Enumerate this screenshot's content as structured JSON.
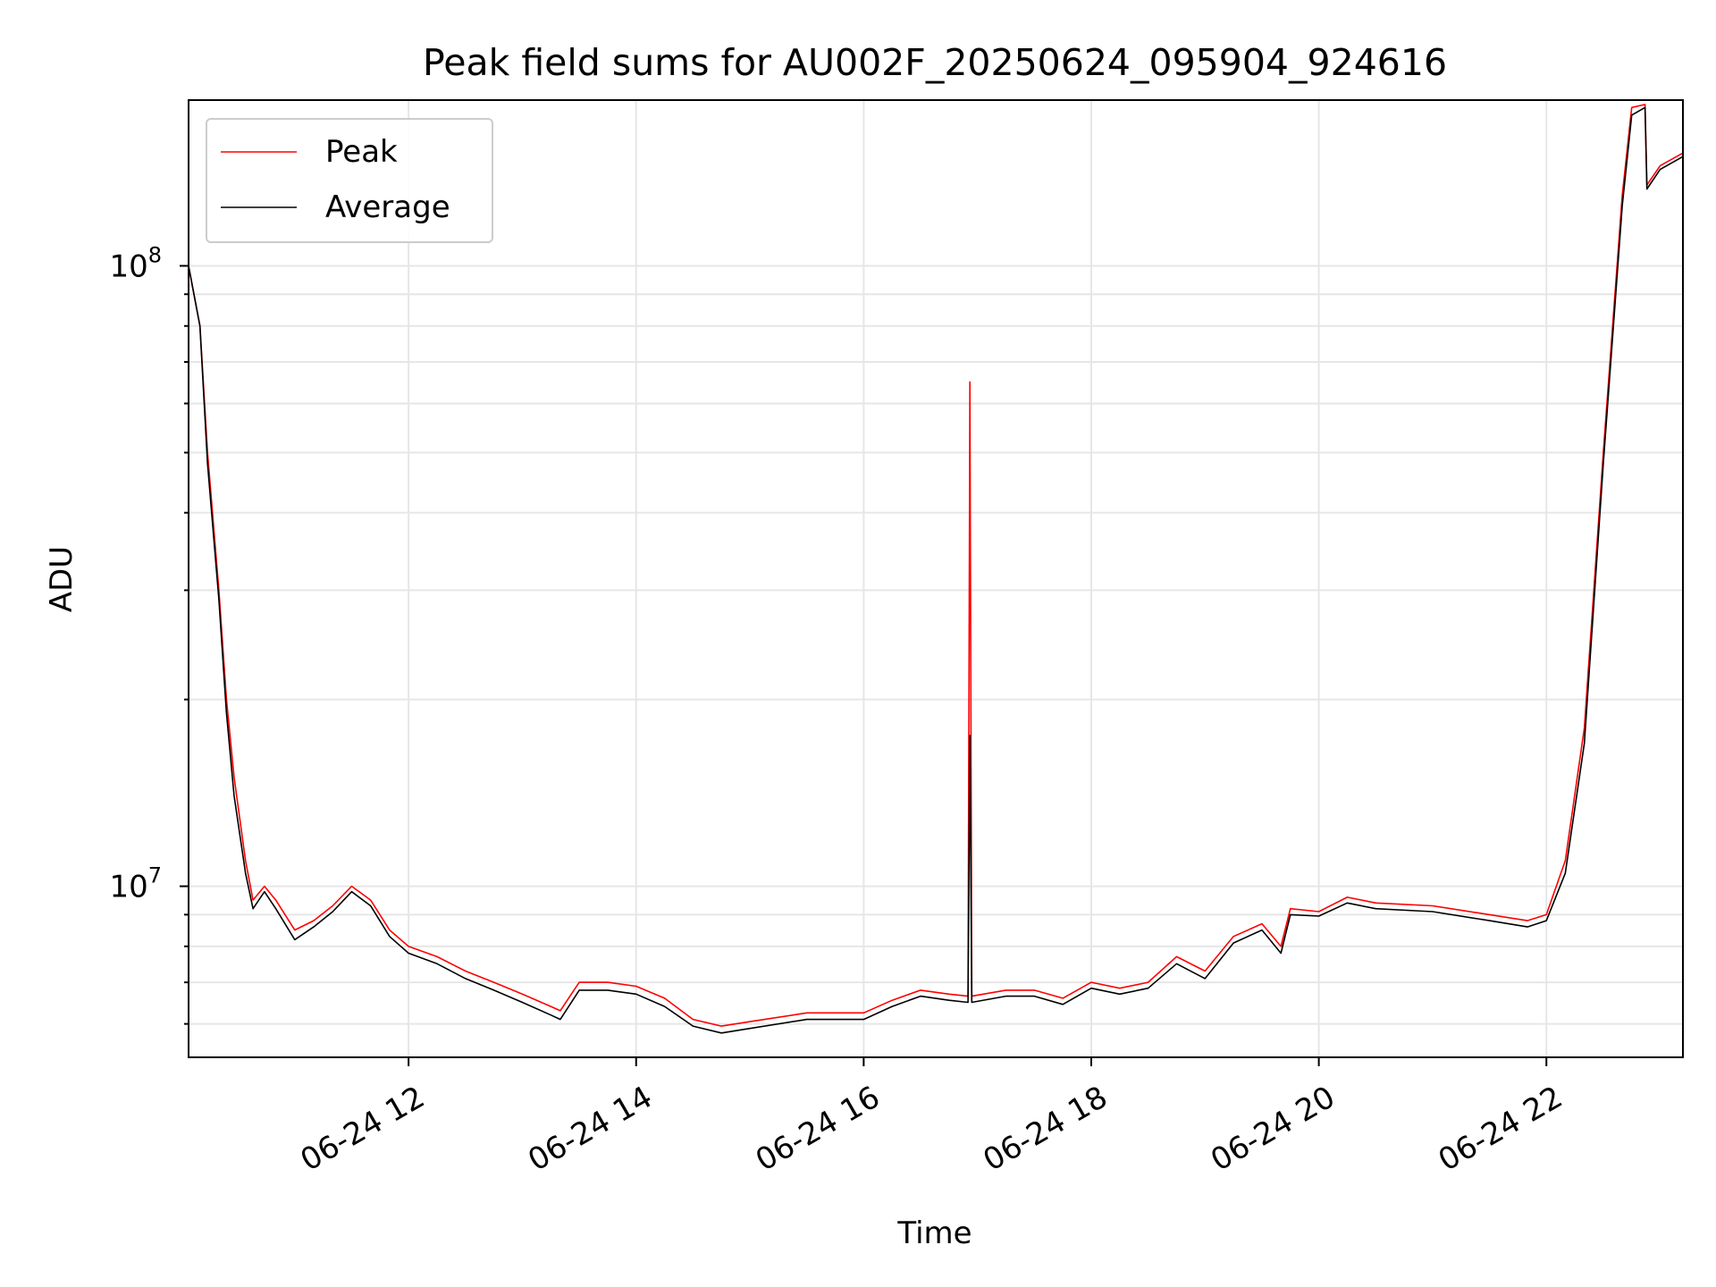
{
  "chart_data": {
    "type": "line",
    "title": "Peak field sums for AU002F_20250624_095904_924616",
    "xlabel": "Time",
    "ylabel": "ADU",
    "y_scale": "log",
    "ylim": [
      5300000,
      185000000
    ],
    "xlim": [
      "06-24 10:04",
      "06-24 23:12"
    ],
    "x_ticks": [
      {
        "time": "06-24 12:00",
        "label": "06-24 12"
      },
      {
        "time": "06-24 14:00",
        "label": "06-24 14"
      },
      {
        "time": "06-24 16:00",
        "label": "06-24 16"
      },
      {
        "time": "06-24 18:00",
        "label": "06-24 18"
      },
      {
        "time": "06-24 20:00",
        "label": "06-24 20"
      },
      {
        "time": "06-24 22:00",
        "label": "06-24 22"
      }
    ],
    "y_ticks": [
      {
        "value": 10000000,
        "base": "10",
        "exp": "7"
      },
      {
        "value": 100000000,
        "base": "10",
        "exp": "8"
      }
    ],
    "grid": true,
    "legend_position": "top-left",
    "series": [
      {
        "name": "Peak",
        "color": "#ff0000",
        "x": [
          "06-24 10:04",
          "06-24 10:10",
          "06-24 10:14",
          "06-24 10:20",
          "06-24 10:24",
          "06-24 10:28",
          "06-24 10:34",
          "06-24 10:38",
          "06-24 10:44",
          "06-24 10:50",
          "06-24 11:00",
          "06-24 11:10",
          "06-24 11:20",
          "06-24 11:30",
          "06-24 11:40",
          "06-24 11:50",
          "06-24 12:00",
          "06-24 12:15",
          "06-24 12:30",
          "06-24 12:45",
          "06-24 13:00",
          "06-24 13:15",
          "06-24 13:20",
          "06-24 13:30",
          "06-24 13:45",
          "06-24 14:00",
          "06-24 14:15",
          "06-24 14:30",
          "06-24 14:45",
          "06-24 15:00",
          "06-24 15:30",
          "06-24 16:00",
          "06-24 16:15",
          "06-24 16:30",
          "06-24 16:45",
          "06-24 16:55",
          "06-24 16:56",
          "06-24 16:57",
          "06-24 17:15",
          "06-24 17:30",
          "06-24 17:45",
          "06-24 18:00",
          "06-24 18:15",
          "06-24 18:30",
          "06-24 18:45",
          "06-24 19:00",
          "06-24 19:15",
          "06-24 19:30",
          "06-24 19:40",
          "06-24 19:45",
          "06-24 20:00",
          "06-24 20:15",
          "06-24 20:30",
          "06-24 21:00",
          "06-24 21:30",
          "06-24 21:50",
          "06-24 22:00",
          "06-24 22:10",
          "06-24 22:20",
          "06-24 22:30",
          "06-24 22:40",
          "06-24 22:45",
          "06-24 22:52",
          "06-24 22:53",
          "06-24 23:00",
          "06-24 23:12"
        ],
        "values": [
          100000000,
          80000000,
          50000000,
          30000000,
          20000000,
          15000000,
          11000000,
          9500000,
          10000000,
          9500000,
          8500000,
          8800000,
          9300000,
          10000000,
          9500000,
          8500000,
          8000000,
          7700000,
          7300000,
          7000000,
          6700000,
          6400000,
          6300000,
          7000000,
          7000000,
          6900000,
          6600000,
          6100000,
          5950000,
          6050000,
          6250000,
          6250000,
          6550000,
          6800000,
          6700000,
          6650000,
          65000000,
          6650000,
          6800000,
          6800000,
          6600000,
          7000000,
          6850000,
          7000000,
          7700000,
          7300000,
          8300000,
          8700000,
          8000000,
          9200000,
          9100000,
          9600000,
          9400000,
          9300000,
          9000000,
          8800000,
          9000000,
          11000000,
          18000000,
          50000000,
          130000000,
          180000000,
          182000000,
          135000000,
          145000000,
          152000000
        ]
      },
      {
        "name": "Average",
        "color": "#000000",
        "x": [
          "06-24 10:04",
          "06-24 10:10",
          "06-24 10:14",
          "06-24 10:20",
          "06-24 10:24",
          "06-24 10:28",
          "06-24 10:34",
          "06-24 10:38",
          "06-24 10:44",
          "06-24 10:50",
          "06-24 11:00",
          "06-24 11:10",
          "06-24 11:20",
          "06-24 11:30",
          "06-24 11:40",
          "06-24 11:50",
          "06-24 12:00",
          "06-24 12:15",
          "06-24 12:30",
          "06-24 12:45",
          "06-24 13:00",
          "06-24 13:15",
          "06-24 13:20",
          "06-24 13:30",
          "06-24 13:45",
          "06-24 14:00",
          "06-24 14:15",
          "06-24 14:30",
          "06-24 14:45",
          "06-24 15:00",
          "06-24 15:30",
          "06-24 16:00",
          "06-24 16:15",
          "06-24 16:30",
          "06-24 16:45",
          "06-24 16:55",
          "06-24 16:56",
          "06-24 16:57",
          "06-24 17:15",
          "06-24 17:30",
          "06-24 17:45",
          "06-24 18:00",
          "06-24 18:15",
          "06-24 18:30",
          "06-24 18:45",
          "06-24 19:00",
          "06-24 19:15",
          "06-24 19:30",
          "06-24 19:40",
          "06-24 19:45",
          "06-24 20:00",
          "06-24 20:15",
          "06-24 20:30",
          "06-24 21:00",
          "06-24 21:30",
          "06-24 21:50",
          "06-24 22:00",
          "06-24 22:10",
          "06-24 22:20",
          "06-24 22:30",
          "06-24 22:40",
          "06-24 22:45",
          "06-24 22:52",
          "06-24 22:53",
          "06-24 23:00",
          "06-24 23:12"
        ],
        "values": [
          100000000,
          80000000,
          48000000,
          29000000,
          19000000,
          14000000,
          10500000,
          9200000,
          9800000,
          9200000,
          8200000,
          8600000,
          9100000,
          9800000,
          9300000,
          8300000,
          7800000,
          7500000,
          7100000,
          6800000,
          6500000,
          6200000,
          6100000,
          6800000,
          6800000,
          6700000,
          6400000,
          5950000,
          5800000,
          5900000,
          6100000,
          6100000,
          6400000,
          6650000,
          6550000,
          6500000,
          17500000,
          6500000,
          6650000,
          6650000,
          6450000,
          6850000,
          6700000,
          6850000,
          7500000,
          7100000,
          8100000,
          8500000,
          7800000,
          9000000,
          8950000,
          9400000,
          9200000,
          9100000,
          8800000,
          8600000,
          8800000,
          10500000,
          17000000,
          48000000,
          125000000,
          175000000,
          180000000,
          133000000,
          143000000,
          150000000
        ]
      }
    ]
  }
}
